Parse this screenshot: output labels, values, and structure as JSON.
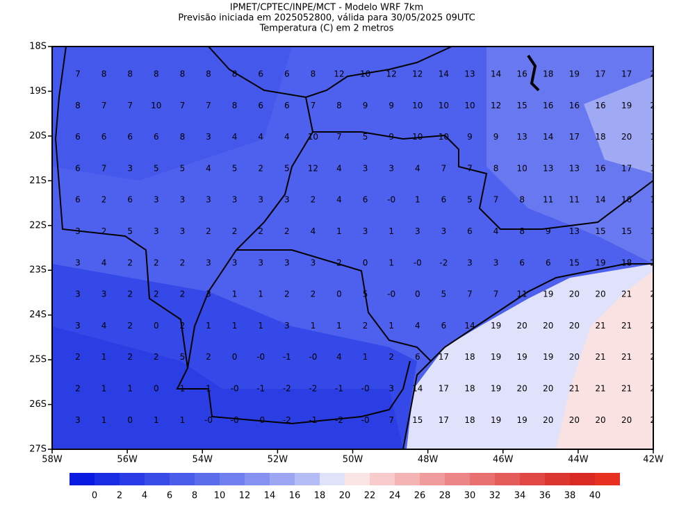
{
  "header": {
    "lines": [
      "IPMET/CPTEC/INPE/MCT - Modelo WRF 7km",
      "Previsão iniciada em 2025052800, válida para 30/05/2025 09UTC",
      "Temperatura (C) em 2 metros"
    ]
  },
  "map": {
    "lat_labels": [
      "18S",
      "19S",
      "20S",
      "21S",
      "22S",
      "23S",
      "24S",
      "25S",
      "26S",
      "27S"
    ],
    "lon_labels": [
      "58W",
      "56W",
      "54W",
      "52W",
      "50W",
      "48W",
      "46W",
      "44W",
      "42W"
    ],
    "grid_labels": [
      [
        "7",
        "8",
        "8",
        "8",
        "8",
        "8",
        "8",
        "6",
        "6",
        "8",
        "12",
        "10",
        "12",
        "12",
        "14",
        "13",
        "14",
        "16",
        "18",
        "19",
        "17",
        "17",
        "2"
      ],
      [
        "8",
        "7",
        "7",
        "10",
        "7",
        "7",
        "8",
        "6",
        "6",
        "7",
        "8",
        "9",
        "9",
        "10",
        "10",
        "10",
        "12",
        "15",
        "16",
        "16",
        "16",
        "19",
        "2"
      ],
      [
        "6",
        "6",
        "6",
        "6",
        "8",
        "3",
        "4",
        "4",
        "4",
        "10",
        "7",
        "5",
        "9",
        "10",
        "10",
        "9",
        "9",
        "13",
        "14",
        "17",
        "18",
        "20",
        "1"
      ],
      [
        "6",
        "7",
        "3",
        "5",
        "5",
        "4",
        "5",
        "2",
        "5",
        "12",
        "4",
        "3",
        "3",
        "4",
        "7",
        "7",
        "8",
        "10",
        "13",
        "13",
        "16",
        "17",
        "1"
      ],
      [
        "6",
        "2",
        "6",
        "3",
        "3",
        "3",
        "3",
        "3",
        "3",
        "2",
        "4",
        "6",
        "-0",
        "1",
        "6",
        "5",
        "7",
        "8",
        "11",
        "11",
        "14",
        "16",
        "1"
      ],
      [
        "3",
        "2",
        "5",
        "3",
        "3",
        "2",
        "2",
        "2",
        "2",
        "4",
        "1",
        "3",
        "1",
        "3",
        "3",
        "6",
        "4",
        "8",
        "9",
        "13",
        "15",
        "15",
        "1"
      ],
      [
        "3",
        "4",
        "2",
        "2",
        "2",
        "3",
        "3",
        "3",
        "3",
        "3",
        "2",
        "0",
        "1",
        "-0",
        "-2",
        "3",
        "3",
        "6",
        "6",
        "15",
        "19",
        "18",
        "2"
      ],
      [
        "3",
        "3",
        "2",
        "2",
        "2",
        "3",
        "1",
        "1",
        "2",
        "2",
        "0",
        "5",
        "-0",
        "0",
        "5",
        "7",
        "7",
        "11",
        "19",
        "20",
        "20",
        "21",
        "2"
      ],
      [
        "3",
        "4",
        "2",
        "0",
        "2",
        "1",
        "1",
        "1",
        "3",
        "1",
        "1",
        "2",
        "1",
        "4",
        "6",
        "14",
        "19",
        "20",
        "20",
        "20",
        "21",
        "21",
        "2"
      ],
      [
        "2",
        "1",
        "2",
        "2",
        "5",
        "2",
        "0",
        "-0",
        "-1",
        "-0",
        "4",
        "1",
        "2",
        "6",
        "17",
        "18",
        "19",
        "19",
        "19",
        "20",
        "21",
        "21",
        "2"
      ],
      [
        "2",
        "1",
        "1",
        "0",
        "1",
        "1",
        "-0",
        "-1",
        "-2",
        "-2",
        "-1",
        "-0",
        "3",
        "14",
        "17",
        "18",
        "19",
        "20",
        "20",
        "21",
        "21",
        "21",
        "2"
      ],
      [
        "3",
        "1",
        "0",
        "1",
        "1",
        "-0",
        "-0",
        "-0",
        "-2",
        "-1",
        "-2",
        "-0",
        "7",
        "15",
        "17",
        "18",
        "19",
        "19",
        "20",
        "20",
        "20",
        "20",
        "2"
      ]
    ]
  },
  "colorbar": {
    "colors": [
      "#0a1ae0",
      "#1a2ce4",
      "#2a3ce6",
      "#3a4ce8",
      "#4a5cea",
      "#5c6dec",
      "#7080ee",
      "#8692f0",
      "#9ca6f2",
      "#b4bcf6",
      "#e0e2fa",
      "#fbe4e4",
      "#f8cccc",
      "#f4b4b4",
      "#f09c9c",
      "#ec8686",
      "#e87070",
      "#e45c5a",
      "#e04846",
      "#dc3630",
      "#d82a22",
      "#e83020"
    ],
    "labels": [
      0,
      2,
      4,
      6,
      8,
      10,
      12,
      14,
      16,
      18,
      20,
      22,
      24,
      26,
      28,
      30,
      32,
      34,
      36,
      38,
      40
    ]
  }
}
